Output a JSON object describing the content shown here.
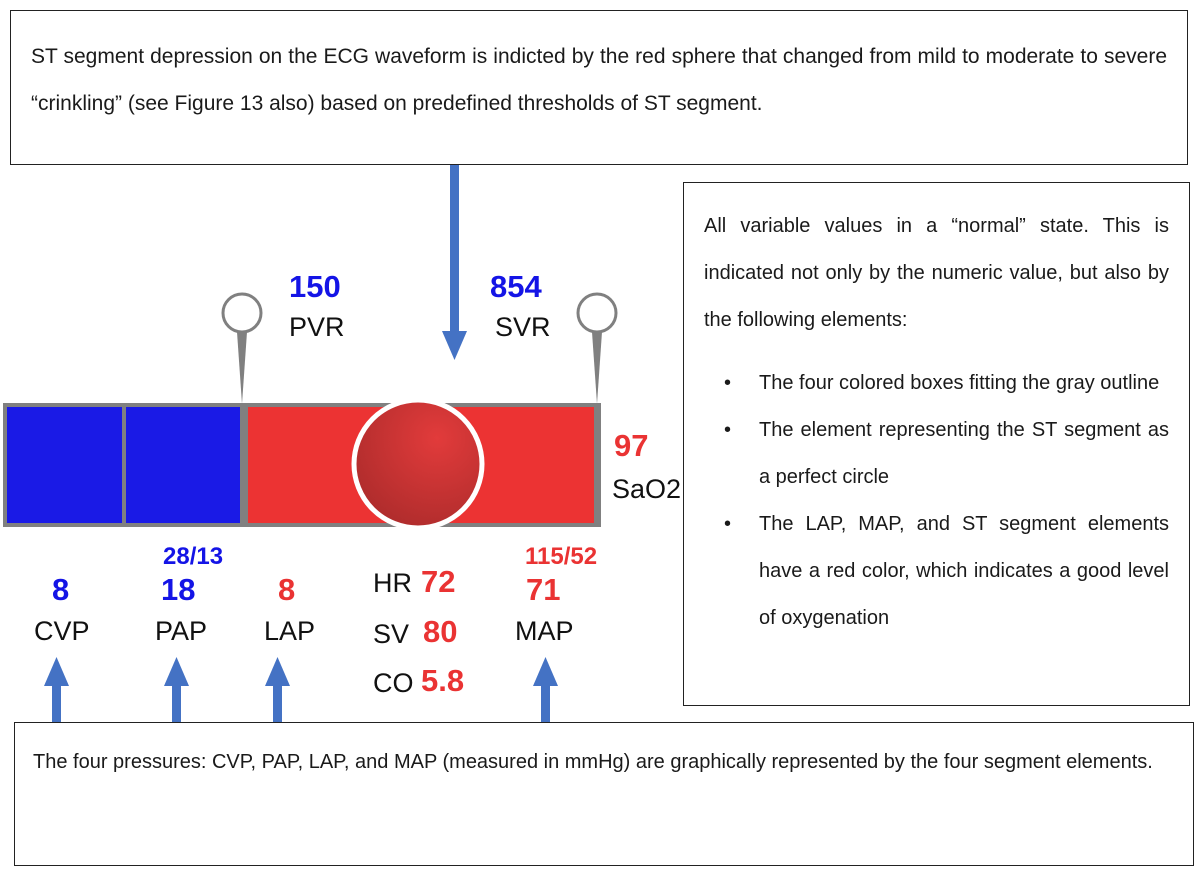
{
  "colors": {
    "blue": "#1a1ae6",
    "red": "#ec3333",
    "gray": "#808080",
    "arrow": "#4472c4",
    "st_circle": "#bb3030"
  },
  "top_note": "ST segment depression on the ECG waveform is indicted by the red sphere that changed from mild to moderate to severe “crinkling” (see Figure 13 also) based on predefined thresholds of ST segment.",
  "right_note": {
    "intro": "All variable values in a “normal” state. This is indicated not only by the numeric value, but also by the following elements:",
    "bullets": [
      "The four colored boxes fitting the gray outline",
      "The element representing the ST segment as a perfect circle",
      "The LAP, MAP, and ST segment elements have a red color, which indicates a good level of oxygenation"
    ]
  },
  "bottom_note": "The four pressures: CVP, PAP, LAP, and MAP (measured in mmHg) are graphically represented by the four segment elements.",
  "resistance": {
    "pvr": {
      "value": "150",
      "label": "PVR"
    },
    "svr": {
      "value": "854",
      "label": "SVR"
    }
  },
  "sao2": {
    "value": "97",
    "label": "SaO2"
  },
  "pressures": {
    "cvp": {
      "value": "8",
      "label": "CVP"
    },
    "pap": {
      "value": "18",
      "label": "PAP",
      "systolic_diastolic": "28/13"
    },
    "lap": {
      "value": "8",
      "label": "LAP"
    },
    "map": {
      "value": "71",
      "label": "MAP",
      "systolic_diastolic": "115/52"
    }
  },
  "cardiac": {
    "hr": {
      "label": "HR",
      "value": "72"
    },
    "sv": {
      "label": "SV",
      "value": "80"
    },
    "co": {
      "label": "CO",
      "value": "5.8"
    }
  }
}
